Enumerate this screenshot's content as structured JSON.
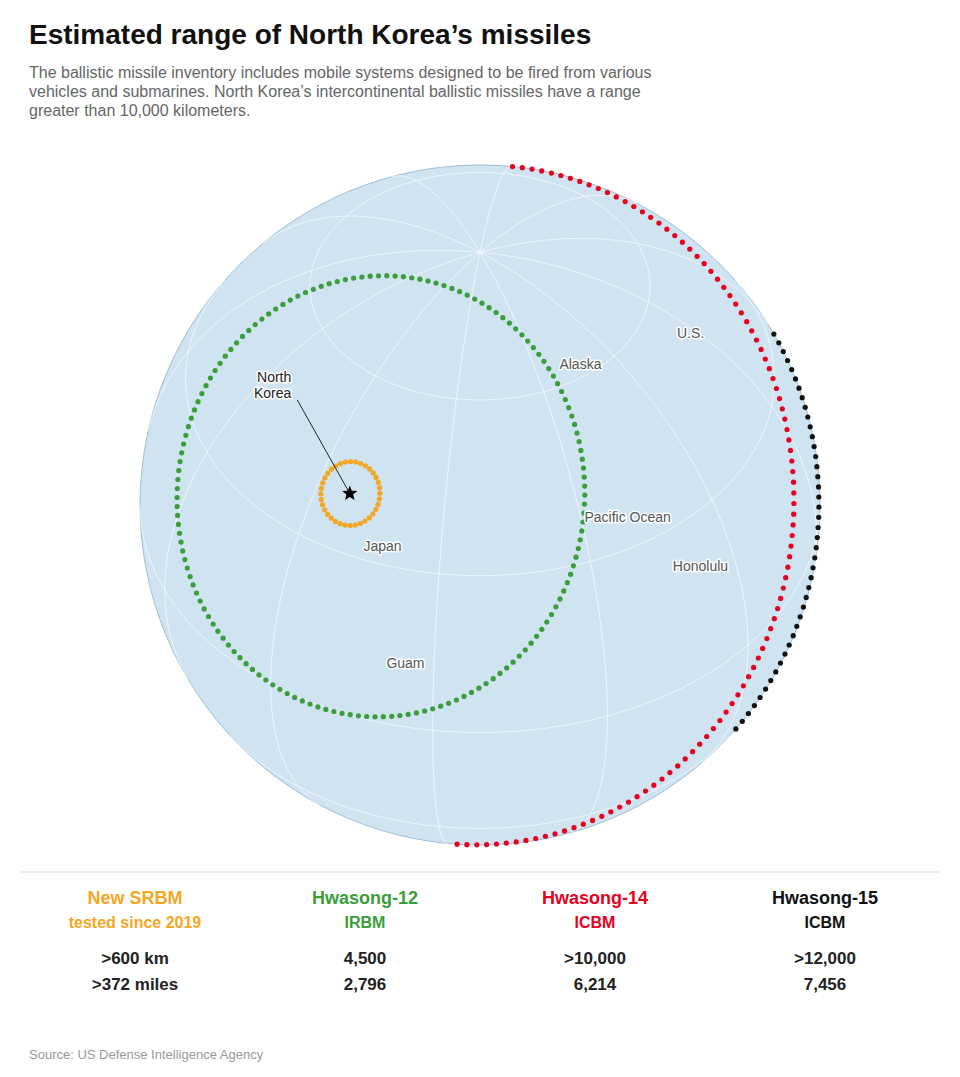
{
  "chart_data": {
    "type": "map",
    "title": "Estimated range of North Korea’s missiles",
    "subtitle": "The ballistic missile inventory includes mobile systems designed to be fired from various\nvehicles and submarines. North Korea’s intercontinental ballistic missiles have a range\ngreater than 10,000 kilometers.",
    "source": "Source: US Defense Intelligence Agency",
    "origin": {
      "name": "North\nKorea",
      "lon": 128.0,
      "lat": 40.0,
      "label_lon": 103,
      "label_lat": 49
    },
    "places": [
      {
        "name": "Japan",
        "lon": 138,
        "lat": 33
      },
      {
        "name": "Alaska",
        "lon": -163,
        "lat": 62
      },
      {
        "name": "U.S.",
        "lon": -122,
        "lat": 51
      },
      {
        "name": "Pacific Ocean",
        "lon": -170,
        "lat": 35
      },
      {
        "name": "Guam",
        "lon": 145,
        "lat": 13
      },
      {
        "name": "Honolulu",
        "lon": -158,
        "lat": 21
      }
    ],
    "series": [
      {
        "name": "New SRBM",
        "note": "tested since 2019",
        "color": "#f5a623",
        "values": [
          600
        ],
        "value_labels": [
          ">600 km"
        ],
        "miles_labels": [
          ">372 miles"
        ]
      },
      {
        "name": "Hwasong-12",
        "note": "IRBM",
        "color": "#3a9e3a",
        "values": [
          4500
        ],
        "value_labels": [
          "4,500"
        ],
        "miles_labels": [
          "2,796"
        ]
      },
      {
        "name": "Hwasong-14",
        "note": "ICBM",
        "color": "#e8001c",
        "values": [
          10000
        ],
        "value_labels": [
          ">10,000"
        ],
        "miles_labels": [
          "6,214"
        ]
      },
      {
        "name": "Hwasong-15",
        "note": "ICBM",
        "color": "#111111",
        "values": [
          12000
        ],
        "value_labels": [
          ">12,000"
        ],
        "miles_labels": [
          "7,456"
        ]
      }
    ]
  }
}
